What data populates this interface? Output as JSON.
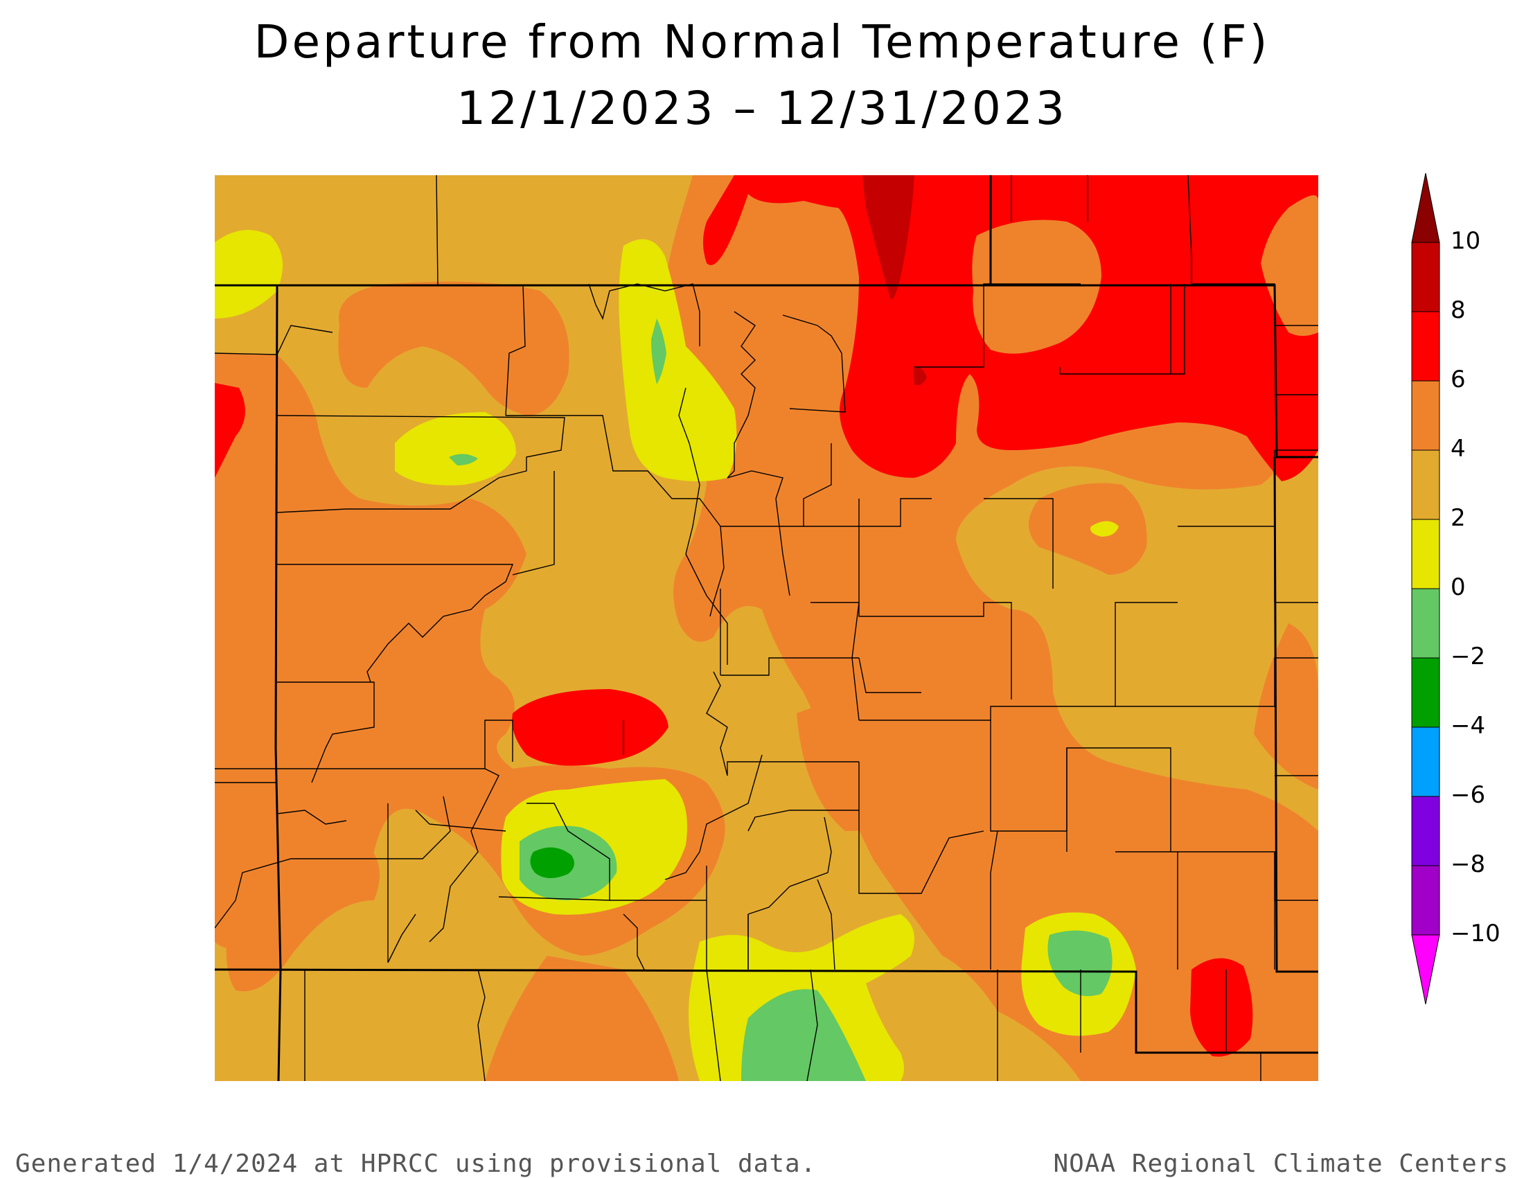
{
  "title": {
    "line1": "Departure from Normal Temperature (F)",
    "line2": "12/1/2023 – 12/31/2023"
  },
  "legend": {
    "stops": [
      {
        "label": "10",
        "color": "#8b0000"
      },
      {
        "label": "8",
        "color": "#c40000"
      },
      {
        "label": "6",
        "color": "#ff0000"
      },
      {
        "label": "4",
        "color": "#ef832c"
      },
      {
        "label": "2",
        "color": "#e3aa30"
      },
      {
        "label": "0",
        "color": "#e6e600"
      },
      {
        "label": "−2",
        "color": "#64c864"
      },
      {
        "label": "−4",
        "color": "#00a000"
      },
      {
        "label": "−6",
        "color": "#00a0ff"
      },
      {
        "label": "−8",
        "color": "#8000e0"
      },
      {
        "label": "−10",
        "color": "#a000c8"
      }
    ],
    "below_min_color": "#ff00ff"
  },
  "colors": {
    "county_lines": "#000000",
    "state_lines": "#000000"
  },
  "footer": {
    "left": "Generated 1/4/2024 at HPRCC using provisional data.",
    "right": "NOAA Regional Climate Centers"
  }
}
